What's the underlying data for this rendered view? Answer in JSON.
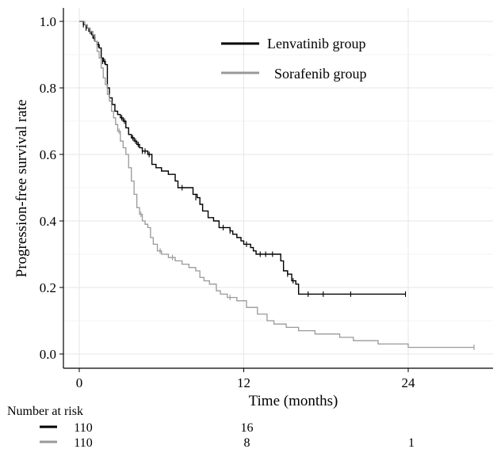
{
  "chart_data": {
    "type": "line",
    "xlabel": "Time (months)",
    "ylabel": "Progression-free survival rate",
    "xlim": [
      0,
      29
    ],
    "ylim": [
      0,
      1.0
    ],
    "xticks": [
      "0",
      "12",
      "24"
    ],
    "yticks": [
      "0.0",
      "0.2",
      "0.4",
      "0.6",
      "0.8",
      "1.0"
    ],
    "grid": true,
    "legend_position": "top-right",
    "series": [
      {
        "name": "Lenvatinib group",
        "color": "#000000",
        "steps": [
          [
            0,
            1.0
          ],
          [
            0.3,
            0.99
          ],
          [
            0.5,
            0.98
          ],
          [
            0.7,
            0.97
          ],
          [
            0.9,
            0.96
          ],
          [
            1.0,
            0.95
          ],
          [
            1.15,
            0.94
          ],
          [
            1.3,
            0.93
          ],
          [
            1.45,
            0.92
          ],
          [
            1.6,
            0.89
          ],
          [
            1.75,
            0.88
          ],
          [
            1.9,
            0.87
          ],
          [
            2.05,
            0.8
          ],
          [
            2.2,
            0.77
          ],
          [
            2.4,
            0.75
          ],
          [
            2.6,
            0.73
          ],
          [
            2.8,
            0.72
          ],
          [
            3.0,
            0.71
          ],
          [
            3.2,
            0.7
          ],
          [
            3.4,
            0.68
          ],
          [
            3.6,
            0.66
          ],
          [
            3.8,
            0.65
          ],
          [
            4.0,
            0.64
          ],
          [
            4.2,
            0.63
          ],
          [
            4.4,
            0.62
          ],
          [
            4.6,
            0.61
          ],
          [
            4.8,
            0.61
          ],
          [
            5.0,
            0.6
          ],
          [
            5.3,
            0.57
          ],
          [
            5.6,
            0.56
          ],
          [
            6.0,
            0.55
          ],
          [
            6.5,
            0.54
          ],
          [
            7.0,
            0.52
          ],
          [
            7.2,
            0.5
          ],
          [
            7.8,
            0.5
          ],
          [
            8.3,
            0.48
          ],
          [
            8.6,
            0.47
          ],
          [
            8.8,
            0.45
          ],
          [
            9.0,
            0.43
          ],
          [
            9.4,
            0.41
          ],
          [
            9.8,
            0.4
          ],
          [
            10.2,
            0.38
          ],
          [
            10.8,
            0.38
          ],
          [
            11.0,
            0.37
          ],
          [
            11.2,
            0.36
          ],
          [
            11.5,
            0.35
          ],
          [
            11.8,
            0.34
          ],
          [
            12.0,
            0.33
          ],
          [
            12.5,
            0.32
          ],
          [
            12.7,
            0.31
          ],
          [
            12.9,
            0.3
          ],
          [
            14.5,
            0.3
          ],
          [
            14.7,
            0.28
          ],
          [
            14.9,
            0.25
          ],
          [
            15.2,
            0.24
          ],
          [
            15.5,
            0.22
          ],
          [
            15.8,
            0.21
          ],
          [
            16.0,
            0.18
          ],
          [
            23.8,
            0.18
          ]
        ],
        "censors": [
          [
            0.3,
            0.99
          ],
          [
            0.5,
            0.98
          ],
          [
            0.8,
            0.97
          ],
          [
            1.1,
            0.95
          ],
          [
            1.4,
            0.93
          ],
          [
            1.7,
            0.88
          ],
          [
            1.85,
            0.88
          ],
          [
            3.1,
            0.71
          ],
          [
            3.3,
            0.7
          ],
          [
            3.9,
            0.65
          ],
          [
            4.1,
            0.64
          ],
          [
            4.3,
            0.63
          ],
          [
            4.6,
            0.61
          ],
          [
            4.8,
            0.61
          ],
          [
            5.1,
            0.6
          ],
          [
            7.5,
            0.5
          ],
          [
            8.5,
            0.47
          ],
          [
            10.5,
            0.38
          ],
          [
            11.0,
            0.37
          ],
          [
            12.2,
            0.33
          ],
          [
            13.2,
            0.3
          ],
          [
            13.6,
            0.3
          ],
          [
            14.1,
            0.3
          ],
          [
            15.2,
            0.24
          ],
          [
            15.6,
            0.22
          ],
          [
            16.7,
            0.18
          ],
          [
            17.8,
            0.18
          ],
          [
            19.8,
            0.18
          ],
          [
            23.8,
            0.18
          ]
        ]
      },
      {
        "name": "Sorafenib group",
        "color": "#999999",
        "steps": [
          [
            0,
            1.0
          ],
          [
            0.4,
            0.99
          ],
          [
            0.6,
            0.98
          ],
          [
            0.8,
            0.97
          ],
          [
            1.0,
            0.96
          ],
          [
            1.15,
            0.94
          ],
          [
            1.3,
            0.91
          ],
          [
            1.45,
            0.89
          ],
          [
            1.6,
            0.86
          ],
          [
            1.75,
            0.83
          ],
          [
            1.9,
            0.81
          ],
          [
            2.05,
            0.78
          ],
          [
            2.2,
            0.76
          ],
          [
            2.35,
            0.73
          ],
          [
            2.5,
            0.71
          ],
          [
            2.65,
            0.69
          ],
          [
            2.8,
            0.67
          ],
          [
            3.0,
            0.64
          ],
          [
            3.2,
            0.62
          ],
          [
            3.4,
            0.6
          ],
          [
            3.6,
            0.56
          ],
          [
            3.8,
            0.52
          ],
          [
            4.0,
            0.48
          ],
          [
            4.2,
            0.44
          ],
          [
            4.4,
            0.42
          ],
          [
            4.6,
            0.4
          ],
          [
            4.8,
            0.39
          ],
          [
            5.0,
            0.38
          ],
          [
            5.2,
            0.35
          ],
          [
            5.4,
            0.33
          ],
          [
            5.7,
            0.31
          ],
          [
            6.0,
            0.3
          ],
          [
            6.5,
            0.29
          ],
          [
            7.0,
            0.28
          ],
          [
            7.5,
            0.27
          ],
          [
            8.0,
            0.26
          ],
          [
            8.5,
            0.25
          ],
          [
            8.8,
            0.23
          ],
          [
            9.1,
            0.22
          ],
          [
            9.5,
            0.21
          ],
          [
            10.0,
            0.19
          ],
          [
            10.3,
            0.18
          ],
          [
            10.8,
            0.17
          ],
          [
            11.5,
            0.16
          ],
          [
            12.2,
            0.14
          ],
          [
            13.0,
            0.12
          ],
          [
            13.7,
            0.1
          ],
          [
            14.2,
            0.09
          ],
          [
            15.1,
            0.08
          ],
          [
            16.0,
            0.07
          ],
          [
            17.2,
            0.06
          ],
          [
            19.0,
            0.05
          ],
          [
            20.0,
            0.04
          ],
          [
            21.8,
            0.03
          ],
          [
            24.0,
            0.02
          ],
          [
            28.8,
            0.02
          ]
        ],
        "censors": [
          [
            2.9,
            0.67
          ],
          [
            4.5,
            0.42
          ],
          [
            5.9,
            0.31
          ],
          [
            6.8,
            0.29
          ],
          [
            11.0,
            0.17
          ],
          [
            28.8,
            0.02
          ]
        ]
      }
    ],
    "number_at_risk": {
      "title": "Number at risk",
      "times": [
        0,
        12,
        24
      ],
      "rows": [
        {
          "series": "Lenvatinib group",
          "values": [
            "110",
            "16",
            ""
          ]
        },
        {
          "series": "Sorafenib group",
          "values": [
            "110",
            "8",
            "1"
          ]
        }
      ]
    }
  }
}
